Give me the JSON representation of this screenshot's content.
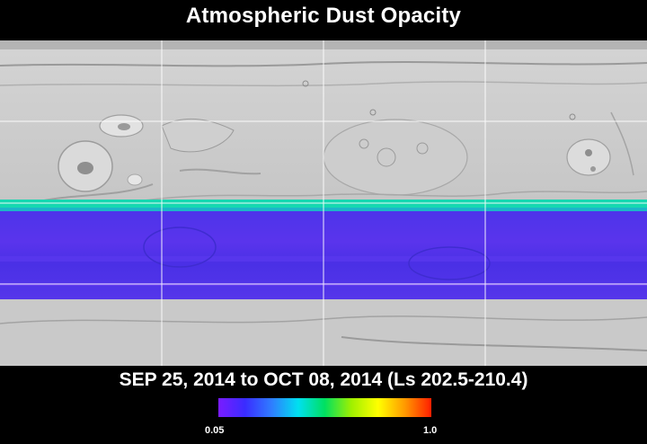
{
  "title": "Atmospheric Dust Opacity",
  "date_range": "SEP 25, 2014 to OCT 08, 2014 (Ls 202.5-210.4)",
  "colorbar": {
    "min_label": "0.05",
    "max_label": "1.0",
    "stops": [
      "#7a1cff",
      "#3a2cff",
      "#2f7dff",
      "#00e0f0",
      "#00e060",
      "#a0f000",
      "#ffff00",
      "#ff9a00",
      "#ff1e00"
    ]
  },
  "map": {
    "graticule": {
      "lon_lines": 4,
      "lat_lines": 3
    },
    "base_color": "#c8c8c8",
    "band_colors": {
      "edge": "#15d8b0",
      "body": "#4a2ee8",
      "highlight": "#6a3cf2"
    },
    "opacity_band": {
      "edge_value": "low",
      "body_value": "min"
    }
  }
}
